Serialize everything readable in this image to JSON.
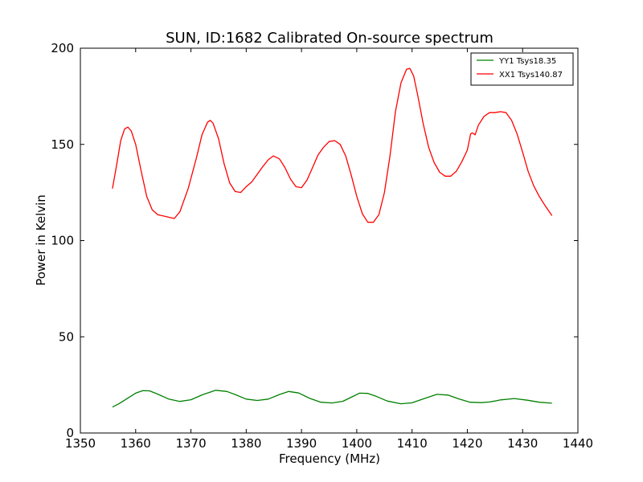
{
  "chart_data": {
    "type": "line",
    "title": "SUN, ID:1682 Calibrated On-source spectrum",
    "xlabel": "Frequency (MHz)",
    "ylabel": "Power in Kelvin",
    "xlim": [
      1350,
      1440
    ],
    "ylim": [
      0,
      200
    ],
    "xticks": [
      1350,
      1360,
      1370,
      1380,
      1390,
      1400,
      1410,
      1420,
      1430,
      1440
    ],
    "yticks": [
      0,
      50,
      100,
      150,
      200
    ],
    "grid": false,
    "legend_position": "top-right",
    "series": [
      {
        "name": "YY1 Tsys18.35",
        "color": "#008000",
        "x": [
          1355.8,
          1357,
          1358.5,
          1360,
          1361.3,
          1362.5,
          1364,
          1366,
          1368,
          1370,
          1372,
          1374.5,
          1376.5,
          1378,
          1380,
          1382,
          1384,
          1386,
          1387.7,
          1389.5,
          1391.5,
          1393.5,
          1395.5,
          1397.5,
          1399,
          1400.5,
          1402,
          1403.5,
          1405.5,
          1408,
          1410,
          1412,
          1414.5,
          1416.5,
          1418.5,
          1420.5,
          1422.5,
          1424,
          1425,
          1426,
          1428.5,
          1431,
          1433,
          1435.3
        ],
        "y": [
          13.5,
          15.2,
          18,
          20.7,
          22,
          21.9,
          20.2,
          17.6,
          16.4,
          17.3,
          19.8,
          22.2,
          21.6,
          20,
          17.6,
          16.9,
          17.6,
          20,
          21.6,
          20.8,
          18,
          16,
          15.6,
          16.5,
          18.6,
          20.7,
          20.6,
          19.1,
          16.6,
          15.2,
          15.7,
          17.7,
          20.1,
          19.7,
          17.7,
          16,
          15.8,
          16.1,
          16.6,
          17.2,
          17.9,
          17,
          16,
          15.5
        ]
      },
      {
        "name": "XX1 Tsys140.87",
        "color": "#ff0000",
        "x": [
          1355.8,
          1356.6,
          1357.3,
          1358,
          1358.6,
          1359.2,
          1360,
          1361,
          1362,
          1363,
          1364,
          1365.5,
          1367,
          1368,
          1369.5,
          1371,
          1372,
          1373,
          1373.5,
          1374,
          1375,
          1376,
          1377,
          1378,
          1379,
          1380,
          1381,
          1382,
          1383,
          1384,
          1384.9,
          1386,
          1387,
          1388,
          1389,
          1390,
          1391,
          1392,
          1393,
          1394,
          1395,
          1396,
          1397,
          1398,
          1399,
          1400,
          1401,
          1402,
          1403,
          1404,
          1405,
          1406,
          1407,
          1408,
          1409,
          1409.6,
          1410.3,
          1411,
          1412,
          1413,
          1414,
          1415,
          1416,
          1417,
          1418,
          1419,
          1420,
          1420.6,
          1420.9,
          1421.4,
          1422,
          1423,
          1424,
          1425,
          1426,
          1427,
          1428,
          1429,
          1430,
          1431,
          1432,
          1433,
          1434,
          1435.3
        ],
        "y": [
          127,
          140,
          152,
          158,
          159,
          157,
          150,
          136,
          123,
          116,
          113.5,
          112.5,
          111.5,
          115,
          127,
          143,
          155,
          161.5,
          162.5,
          161,
          153,
          140,
          130,
          125.5,
          125,
          128,
          130.5,
          134.5,
          138.5,
          142,
          144,
          142.5,
          138,
          132,
          128,
          127.5,
          131.5,
          138,
          144.5,
          148.5,
          151.5,
          152,
          150,
          144,
          134,
          123,
          114,
          109.5,
          109.5,
          113.5,
          125,
          144,
          167,
          182,
          189,
          189.5,
          185.5,
          176,
          161,
          148.5,
          140.5,
          135.5,
          133.5,
          133.5,
          136,
          141,
          147,
          155.5,
          156,
          155,
          160,
          164.5,
          166.5,
          166.5,
          167,
          166.5,
          162.5,
          155.5,
          146,
          136,
          128.5,
          123,
          118.5,
          113
        ]
      }
    ]
  }
}
